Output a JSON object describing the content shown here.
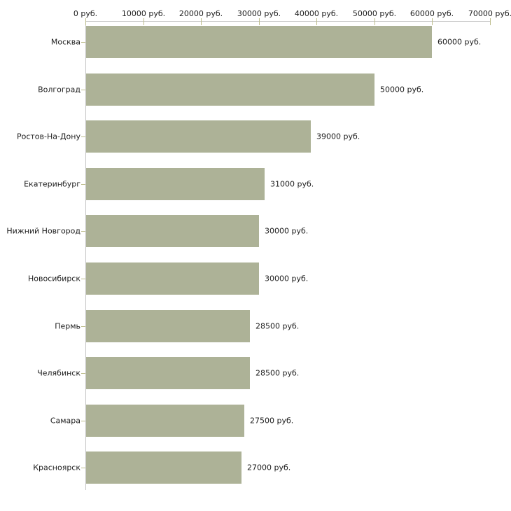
{
  "chart_data": {
    "type": "bar",
    "orientation": "horizontal",
    "title": "",
    "categories": [
      "Москва",
      "Волгоград",
      "Ростов-На-Дону",
      "Екатеринбург",
      "Нижний Новгород",
      "Новосибирск",
      "Пермь",
      "Челябинск",
      "Самара",
      "Красноярск"
    ],
    "values": [
      60000,
      50000,
      39000,
      31000,
      30000,
      30000,
      28500,
      28500,
      27500,
      27000
    ],
    "value_labels": [
      "60000 руб.",
      "50000 руб.",
      "39000 руб.",
      "31000 руб.",
      "30000 руб.",
      "30000 руб.",
      "28500 руб.",
      "28500 руб.",
      "27500 руб.",
      "27000 руб."
    ],
    "unit": "руб.",
    "x_axis": {
      "position": "top",
      "range": [
        0,
        70000
      ],
      "ticks": [
        0,
        10000,
        20000,
        30000,
        40000,
        50000,
        60000,
        70000
      ],
      "tick_labels": [
        "0 руб.",
        "10000 руб.",
        "20000 руб.",
        "30000 руб.",
        "40000 руб.",
        "50000 руб.",
        "60000 руб.",
        "70000 руб."
      ]
    },
    "grid": false,
    "legend": false,
    "colors": {
      "bar": "#ADB297",
      "axis_line": "#C6C6C6",
      "tick_mark": "#BDBD8C",
      "text": "#1C1C1C",
      "background": "#FFFFFF"
    }
  }
}
